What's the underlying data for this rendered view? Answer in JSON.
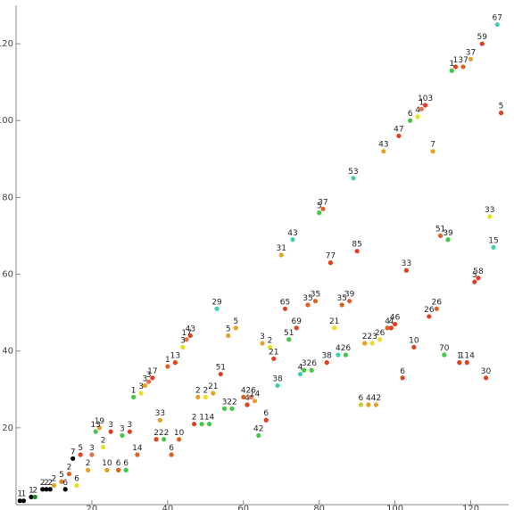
{
  "chart_data": {
    "type": "scatter",
    "title": "",
    "xlabel": "",
    "ylabel": "",
    "xlim": [
      0,
      130
    ],
    "ylim": [
      0,
      130
    ],
    "x_ticks": [
      20,
      40,
      60,
      80,
      100,
      120
    ],
    "y_ticks": [
      20,
      40,
      60,
      80,
      100,
      120
    ],
    "grid": false,
    "points": [
      {
        "x": 1,
        "y": 1,
        "color": "#000000",
        "label": "1"
      },
      {
        "x": 2,
        "y": 1,
        "color": "#000000",
        "label": "1"
      },
      {
        "x": 4,
        "y": 2,
        "color": "#000000",
        "label": "1"
      },
      {
        "x": 5,
        "y": 2,
        "color": "#1e8a1e",
        "label": "2"
      },
      {
        "x": 7,
        "y": 4,
        "color": "#000000",
        "label": "2"
      },
      {
        "x": 8,
        "y": 4,
        "color": "#000000",
        "label": "2"
      },
      {
        "x": 9,
        "y": 4,
        "color": "#000000",
        "label": "2"
      },
      {
        "x": 10,
        "y": 5,
        "color": "#e8a020",
        "label": "2"
      },
      {
        "x": 12,
        "y": 6,
        "color": "#d88020",
        "label": "5"
      },
      {
        "x": 13,
        "y": 4,
        "color": "#000000",
        "label": "6"
      },
      {
        "x": 14,
        "y": 8,
        "color": "#e06020",
        "label": "2"
      },
      {
        "x": 15,
        "y": 12,
        "color": "#000000",
        "label": "7"
      },
      {
        "x": 16,
        "y": 5,
        "color": "#e6e020",
        "label": "6"
      },
      {
        "x": 17,
        "y": 13,
        "color": "#e04020",
        "label": "5"
      },
      {
        "x": 19,
        "y": 9,
        "color": "#e8a020",
        "label": "2"
      },
      {
        "x": 20,
        "y": 13,
        "color": "#e87050",
        "label": "3"
      },
      {
        "x": 21,
        "y": 19,
        "color": "#40c840",
        "label": "13"
      },
      {
        "x": 22,
        "y": 20,
        "color": "#e8a020",
        "label": "19"
      },
      {
        "x": 23,
        "y": 15,
        "color": "#e6e020",
        "label": "2"
      },
      {
        "x": 24,
        "y": 9,
        "color": "#e8a020",
        "label": "10"
      },
      {
        "x": 25,
        "y": 19,
        "color": "#d84020",
        "label": "3"
      },
      {
        "x": 27,
        "y": 9,
        "color": "#e06020",
        "label": "6"
      },
      {
        "x": 28,
        "y": 18,
        "color": "#40c840",
        "label": "3"
      },
      {
        "x": 29,
        "y": 9,
        "color": "#40c840",
        "label": "6"
      },
      {
        "x": 30,
        "y": 19,
        "color": "#e04020",
        "label": "3"
      },
      {
        "x": 31,
        "y": 28,
        "color": "#40c840",
        "label": "1"
      },
      {
        "x": 32,
        "y": 13,
        "color": "#e06020",
        "label": "14"
      },
      {
        "x": 33,
        "y": 29,
        "color": "#e6e020",
        "label": "3"
      },
      {
        "x": 34,
        "y": 31,
        "color": "#e8a020",
        "label": "3"
      },
      {
        "x": 35,
        "y": 32,
        "color": "#e87050",
        "label": "3"
      },
      {
        "x": 36,
        "y": 33,
        "color": "#e04020",
        "label": "17"
      },
      {
        "x": 37,
        "y": 17,
        "color": "#e04020",
        "label": "2"
      },
      {
        "x": 38,
        "y": 22,
        "color": "#e8a020",
        "label": "33"
      },
      {
        "x": 39,
        "y": 17,
        "color": "#40c840",
        "label": "22"
      },
      {
        "x": 40,
        "y": 36,
        "color": "#e06020",
        "label": "1"
      },
      {
        "x": 41,
        "y": 13,
        "color": "#e06020",
        "label": "6"
      },
      {
        "x": 42,
        "y": 37,
        "color": "#e04020",
        "label": "13"
      },
      {
        "x": 43,
        "y": 17,
        "color": "#e06020",
        "label": "10"
      },
      {
        "x": 44,
        "y": 41,
        "color": "#e6e020",
        "label": "3"
      },
      {
        "x": 45,
        "y": 43,
        "color": "#e87050",
        "label": "17"
      },
      {
        "x": 46,
        "y": 44,
        "color": "#e04020",
        "label": "43"
      },
      {
        "x": 47,
        "y": 21,
        "color": "#e04020",
        "label": "2"
      },
      {
        "x": 48,
        "y": 28,
        "color": "#e8a020",
        "label": "2"
      },
      {
        "x": 49,
        "y": 21,
        "color": "#40c840",
        "label": "1"
      },
      {
        "x": 50,
        "y": 28,
        "color": "#e6e020",
        "label": "2"
      },
      {
        "x": 51,
        "y": 21,
        "color": "#40c840",
        "label": "14"
      },
      {
        "x": 52,
        "y": 29,
        "color": "#e8a020",
        "label": "21"
      },
      {
        "x": 53,
        "y": 51,
        "color": "#40d0b0",
        "label": "29"
      },
      {
        "x": 54,
        "y": 34,
        "color": "#e04020",
        "label": "51"
      },
      {
        "x": 55,
        "y": 25,
        "color": "#40c840",
        "label": "3"
      },
      {
        "x": 56,
        "y": 44,
        "color": "#e8a020",
        "label": "5"
      },
      {
        "x": 57,
        "y": 25,
        "color": "#40c840",
        "label": "22"
      },
      {
        "x": 58,
        "y": 46,
        "color": "#e8a020",
        "label": "5"
      },
      {
        "x": 60,
        "y": 28,
        "color": "#e06020",
        "label": "4"
      },
      {
        "x": 61,
        "y": 26,
        "color": "#e04020",
        "label": "4"
      },
      {
        "x": 62,
        "y": 28,
        "color": "#e87050",
        "label": "26"
      },
      {
        "x": 63,
        "y": 27,
        "color": "#e8a020",
        "label": "14"
      },
      {
        "x": 64,
        "y": 18,
        "color": "#40c840",
        "label": "42"
      },
      {
        "x": 65,
        "y": 42,
        "color": "#e8a020",
        "label": "3"
      },
      {
        "x": 66,
        "y": 22,
        "color": "#e04020",
        "label": "6"
      },
      {
        "x": 67,
        "y": 41,
        "color": "#e6e020",
        "label": "2"
      },
      {
        "x": 68,
        "y": 38,
        "color": "#e04020",
        "label": "21"
      },
      {
        "x": 69,
        "y": 31,
        "color": "#40d0b0",
        "label": "38"
      },
      {
        "x": 70,
        "y": 65,
        "color": "#e8a020",
        "label": "31"
      },
      {
        "x": 71,
        "y": 51,
        "color": "#e04020",
        "label": "65"
      },
      {
        "x": 72,
        "y": 43,
        "color": "#40c840",
        "label": "51"
      },
      {
        "x": 73,
        "y": 69,
        "color": "#40d0b0",
        "label": "43"
      },
      {
        "x": 74,
        "y": 46,
        "color": "#e04020",
        "label": "69"
      },
      {
        "x": 75,
        "y": 34,
        "color": "#40d0b0",
        "label": "4"
      },
      {
        "x": 76,
        "y": 35,
        "color": "#40c840",
        "label": "3"
      },
      {
        "x": 77,
        "y": 52,
        "color": "#e06020",
        "label": "35"
      },
      {
        "x": 78,
        "y": 35,
        "color": "#40c840",
        "label": "26"
      },
      {
        "x": 79,
        "y": 53,
        "color": "#e06020",
        "label": "35"
      },
      {
        "x": 80,
        "y": 76,
        "color": "#40c840",
        "label": "5"
      },
      {
        "x": 81,
        "y": 77,
        "color": "#e06020",
        "label": "37"
      },
      {
        "x": 82,
        "y": 37,
        "color": "#e04020",
        "label": "38"
      },
      {
        "x": 83,
        "y": 63,
        "color": "#e04020",
        "label": "77"
      },
      {
        "x": 84,
        "y": 46,
        "color": "#e6e020",
        "label": "21"
      },
      {
        "x": 85,
        "y": 39,
        "color": "#40d0b0",
        "label": "4"
      },
      {
        "x": 86,
        "y": 52,
        "color": "#e06020",
        "label": "35"
      },
      {
        "x": 87,
        "y": 39,
        "color": "#40c840",
        "label": "26"
      },
      {
        "x": 88,
        "y": 53,
        "color": "#e06020",
        "label": "39"
      },
      {
        "x": 89,
        "y": 85,
        "color": "#40d0b0",
        "label": "53"
      },
      {
        "x": 90,
        "y": 66,
        "color": "#e04020",
        "label": "85"
      },
      {
        "x": 91,
        "y": 26,
        "color": "#c8c840",
        "label": "6"
      },
      {
        "x": 92,
        "y": 42,
        "color": "#e8a020",
        "label": "2"
      },
      {
        "x": 93,
        "y": 26,
        "color": "#e8a020",
        "label": "4"
      },
      {
        "x": 94,
        "y": 42,
        "color": "#e6e020",
        "label": "23"
      },
      {
        "x": 95,
        "y": 26,
        "color": "#e8a020",
        "label": "42"
      },
      {
        "x": 96,
        "y": 43,
        "color": "#e6e020",
        "label": "26"
      },
      {
        "x": 97,
        "y": 92,
        "color": "#e8a020",
        "label": "43"
      },
      {
        "x": 98,
        "y": 46,
        "color": "#e06020",
        "label": "4"
      },
      {
        "x": 99,
        "y": 46,
        "color": "#e04020",
        "label": "4"
      },
      {
        "x": 100,
        "y": 47,
        "color": "#e04020",
        "label": "46"
      },
      {
        "x": 101,
        "y": 96,
        "color": "#e04020",
        "label": "47"
      },
      {
        "x": 102,
        "y": 33,
        "color": "#e04020",
        "label": "6"
      },
      {
        "x": 103,
        "y": 61,
        "color": "#e04020",
        "label": "33"
      },
      {
        "x": 104,
        "y": 100,
        "color": "#40c840",
        "label": "6"
      },
      {
        "x": 105,
        "y": 41,
        "color": "#e04020",
        "label": "10"
      },
      {
        "x": 106,
        "y": 101,
        "color": "#e6e020",
        "label": "4"
      },
      {
        "x": 107,
        "y": 103,
        "color": "#e87050",
        "label": "1"
      },
      {
        "x": 108,
        "y": 104,
        "color": "#e04020",
        "label": "103"
      },
      {
        "x": 109,
        "y": 49,
        "color": "#e04020",
        "label": "26"
      },
      {
        "x": 110,
        "y": 92,
        "color": "#e8a020",
        "label": "7"
      },
      {
        "x": 111,
        "y": 51,
        "color": "#e06020",
        "label": "26"
      },
      {
        "x": 112,
        "y": 70,
        "color": "#e06020",
        "label": "51"
      },
      {
        "x": 113,
        "y": 39,
        "color": "#40c840",
        "label": "70"
      },
      {
        "x": 114,
        "y": 69,
        "color": "#40c840",
        "label": "39"
      },
      {
        "x": 115,
        "y": 113,
        "color": "#40c840",
        "label": "1"
      },
      {
        "x": 116,
        "y": 114,
        "color": "#e04020",
        "label": "1"
      },
      {
        "x": 117,
        "y": 37,
        "color": "#e04020",
        "label": "1"
      },
      {
        "x": 118,
        "y": 114,
        "color": "#e06020",
        "label": "37"
      },
      {
        "x": 119,
        "y": 37,
        "color": "#e04020",
        "label": "114"
      },
      {
        "x": 120,
        "y": 116,
        "color": "#e8a020",
        "label": "37"
      },
      {
        "x": 121,
        "y": 58,
        "color": "#e04020",
        "label": "5"
      },
      {
        "x": 122,
        "y": 59,
        "color": "#e04020",
        "label": "58"
      },
      {
        "x": 123,
        "y": 120,
        "color": "#e04020",
        "label": "59"
      },
      {
        "x": 124,
        "y": 33,
        "color": "#e04020",
        "label": "30"
      },
      {
        "x": 125,
        "y": 75,
        "color": "#e6e020",
        "label": "33"
      },
      {
        "x": 126,
        "y": 67,
        "color": "#40d0b0",
        "label": "15"
      },
      {
        "x": 127,
        "y": 125,
        "color": "#40d0b0",
        "label": "67"
      },
      {
        "x": 128,
        "y": 102,
        "color": "#e04020",
        "label": "5"
      }
    ]
  }
}
